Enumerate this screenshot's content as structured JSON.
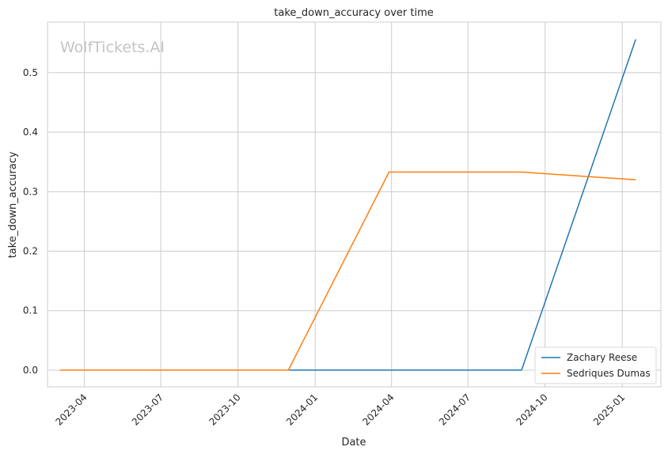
{
  "chart_data": {
    "type": "line",
    "title": "take_down_accuracy over time",
    "xlabel": "Date",
    "ylabel": "take_down_accuracy",
    "watermark": "WolfTickets.AI",
    "x_ticks": [
      "2023-04",
      "2023-07",
      "2023-10",
      "2024-01",
      "2024-04",
      "2024-07",
      "2024-10",
      "2025-01"
    ],
    "y_ticks": [
      "0.0",
      "0.1",
      "0.2",
      "0.3",
      "0.4",
      "0.5"
    ],
    "xlim": [
      "2023-02-16",
      "2025-02-16"
    ],
    "ylim": [
      -0.028,
      0.585
    ],
    "grid": true,
    "legend_position": "lower right",
    "series": [
      {
        "name": "Zachary Reese",
        "color": "#1f77b4",
        "x": [
          "2023-12-01",
          "2024-09-03",
          "2025-01-17"
        ],
        "y": [
          0.0,
          0.0,
          0.556
        ]
      },
      {
        "name": "Sedriques Dumas",
        "color": "#ff7f0e",
        "x": [
          "2023-03-03",
          "2023-11-30",
          "2024-03-29",
          "2024-09-03",
          "2025-01-17"
        ],
        "y": [
          0.0,
          0.0,
          0.333,
          0.333,
          0.32
        ]
      }
    ]
  }
}
